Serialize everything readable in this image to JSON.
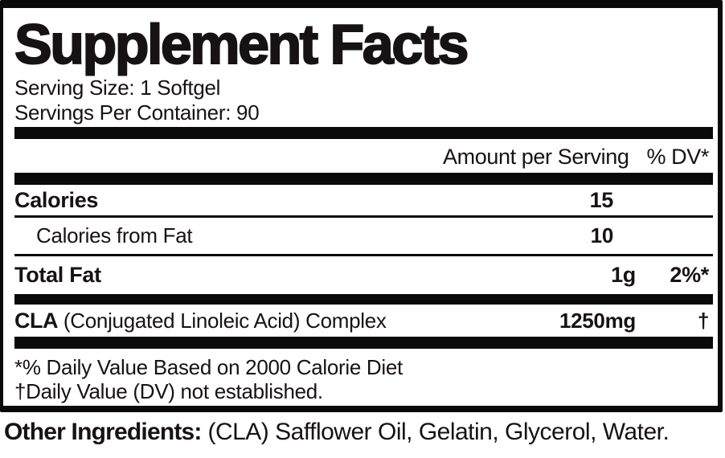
{
  "panel": {
    "title": "Supplement Facts",
    "serving": {
      "size": "Serving Size: 1 Softgel",
      "per_container": "Servings Per Container: 90"
    },
    "columns": {
      "amount": "Amount per Serving",
      "dv": "% DV*"
    },
    "rows": [
      {
        "label": "Calories",
        "amount": "15",
        "dv": ""
      },
      {
        "label": "Calories from Fat",
        "amount": "10",
        "dv": ""
      },
      {
        "label": "Total Fat",
        "amount": "1g",
        "dv": "2%*"
      },
      {
        "label_strong": "CLA",
        "label_rest": " (Conjugated Linoleic Acid) Complex",
        "amount": "1250mg",
        "dv": "†"
      }
    ],
    "footnotes": [
      "*% Daily Value Based on 2000 Calorie Diet",
      "†Daily Value (DV) not established."
    ]
  },
  "other_ingredients": {
    "label": "Other Ingredients:",
    "text": " (CLA) Safflower Oil, Gelatin, Glycerol, Water."
  }
}
